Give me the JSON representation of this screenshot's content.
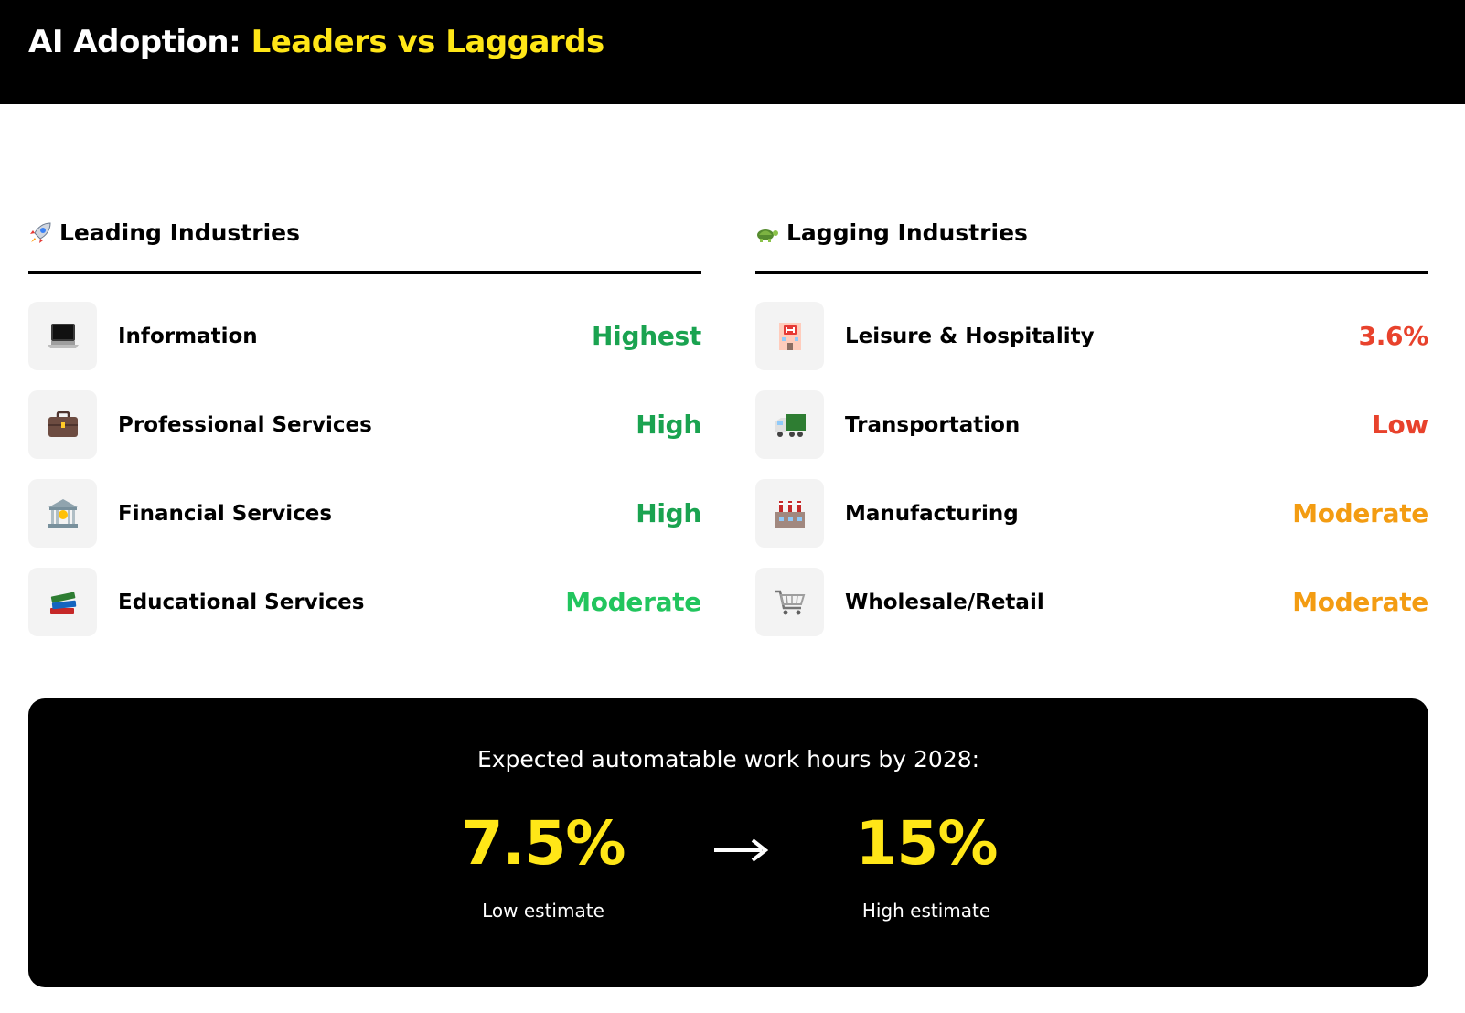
{
  "header": {
    "title_part1": "AI Adoption: ",
    "title_part2": "Leaders vs Laggards"
  },
  "leading": {
    "heading": "Leading Industries",
    "heading_icon": "rocket-icon",
    "items": [
      {
        "label": "Information",
        "value": "Highest",
        "icon": "laptop-icon",
        "color": "#1aa350"
      },
      {
        "label": "Professional Services",
        "value": "High",
        "icon": "briefcase-icon",
        "color": "#1aa350"
      },
      {
        "label": "Financial Services",
        "value": "High",
        "icon": "bank-icon",
        "color": "#1aa350"
      },
      {
        "label": "Educational Services",
        "value": "Moderate",
        "icon": "books-icon",
        "color": "#22c55e"
      }
    ]
  },
  "lagging": {
    "heading": "Lagging Industries",
    "heading_icon": "turtle-icon",
    "items": [
      {
        "label": "Leisure & Hospitality",
        "value": "3.6%",
        "icon": "hotel-icon",
        "color": "#e8422c"
      },
      {
        "label": "Transportation",
        "value": "Low",
        "icon": "truck-icon",
        "color": "#e8422c"
      },
      {
        "label": "Manufacturing",
        "value": "Moderate",
        "icon": "factory-icon",
        "color": "#f39c12"
      },
      {
        "label": "Wholesale/Retail",
        "value": "Moderate",
        "icon": "shopping-cart-icon",
        "color": "#f39c12"
      }
    ]
  },
  "summary": {
    "caption": "Expected automatable work hours by 2028:",
    "low_value": "7.5%",
    "low_label": "Low estimate",
    "high_value": "15%",
    "high_label": "High estimate"
  },
  "colors": {
    "accent_yellow": "#ffe617",
    "green_dark": "#1aa350",
    "green": "#22c55e",
    "red": "#e8422c",
    "orange": "#f39c12"
  }
}
